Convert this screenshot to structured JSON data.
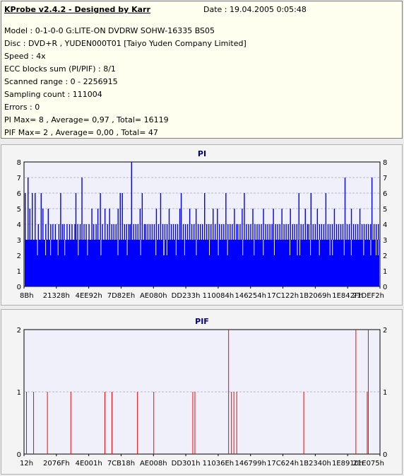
{
  "header": {
    "title": "KProbe v2.4.2 - Designed by Karr",
    "date": "Date : 19.04.2005 0:05:48"
  },
  "info_lines": [
    "Model : 0-1-0-0 G:LITE-ON DVDRW SOHW-16335 BS05",
    "Disc : DVD+R , YUDEN000T01 [Taiyo Yuden Company Limited]",
    "Speed : 4x",
    "ECC blocks sum (PI/PIF) : 8/1",
    "Scanned range : 0 - 2256915",
    "Sampling count : 111004",
    "Errors : 0",
    "PI Max= 8 , Average= 0,97 , Total= 16119",
    "PIF Max= 2 , Average= 0,00 , Total= 47"
  ],
  "colors": {
    "pi_fill": "#0000ff",
    "pif_line": "#ff0000",
    "plot_bg": "#f0f0fa",
    "title": "#000080"
  },
  "chart_data": [
    {
      "type": "bar",
      "title": "PI",
      "ylim": [
        0,
        8
      ],
      "yticks": [
        0,
        1,
        2,
        3,
        4,
        5,
        6,
        7,
        8
      ],
      "xtick_labels": [
        "8Bh",
        "21328h",
        "4EE92h",
        "7D82Eh",
        "AE080h",
        "DD233h",
        "110084h",
        "146254h",
        "17C122h",
        "1B2069h",
        "1E842Fh",
        "21DEF2h"
      ],
      "baseline": 3,
      "samples_fraction_value": [
        [
          0.0,
          6
        ],
        [
          0.008,
          7
        ],
        [
          0.013,
          5
        ],
        [
          0.02,
          6
        ],
        [
          0.028,
          6
        ],
        [
          0.037,
          4
        ],
        [
          0.045,
          6
        ],
        [
          0.05,
          5
        ],
        [
          0.058,
          4
        ],
        [
          0.065,
          5
        ],
        [
          0.072,
          4
        ],
        [
          0.078,
          4
        ],
        [
          0.085,
          4
        ],
        [
          0.095,
          4
        ],
        [
          0.1,
          6
        ],
        [
          0.105,
          4
        ],
        [
          0.11,
          4
        ],
        [
          0.118,
          4
        ],
        [
          0.125,
          4
        ],
        [
          0.132,
          4
        ],
        [
          0.14,
          4
        ],
        [
          0.143,
          6
        ],
        [
          0.148,
          4
        ],
        [
          0.155,
          4
        ],
        [
          0.16,
          7
        ],
        [
          0.166,
          4
        ],
        [
          0.172,
          4
        ],
        [
          0.18,
          4
        ],
        [
          0.188,
          5
        ],
        [
          0.193,
          4
        ],
        [
          0.2,
          4
        ],
        [
          0.205,
          5
        ],
        [
          0.212,
          6
        ],
        [
          0.218,
          4
        ],
        [
          0.225,
          5
        ],
        [
          0.232,
          4
        ],
        [
          0.238,
          5
        ],
        [
          0.244,
          4
        ],
        [
          0.25,
          4
        ],
        [
          0.256,
          4
        ],
        [
          0.262,
          5
        ],
        [
          0.268,
          6
        ],
        [
          0.274,
          6
        ],
        [
          0.28,
          4
        ],
        [
          0.286,
          4
        ],
        [
          0.292,
          4
        ],
        [
          0.296,
          4
        ],
        [
          0.3,
          8
        ],
        [
          0.306,
          4
        ],
        [
          0.312,
          4
        ],
        [
          0.318,
          4
        ],
        [
          0.324,
          5
        ],
        [
          0.33,
          6
        ],
        [
          0.336,
          4
        ],
        [
          0.34,
          4
        ],
        [
          0.346,
          4
        ],
        [
          0.352,
          4
        ],
        [
          0.358,
          4
        ],
        [
          0.364,
          4
        ],
        [
          0.37,
          5
        ],
        [
          0.376,
          4
        ],
        [
          0.382,
          6
        ],
        [
          0.388,
          4
        ],
        [
          0.394,
          4
        ],
        [
          0.4,
          4
        ],
        [
          0.406,
          5
        ],
        [
          0.412,
          4
        ],
        [
          0.418,
          4
        ],
        [
          0.424,
          4
        ],
        [
          0.43,
          4
        ],
        [
          0.436,
          5
        ],
        [
          0.44,
          6
        ],
        [
          0.446,
          4
        ],
        [
          0.452,
          4
        ],
        [
          0.458,
          4
        ],
        [
          0.464,
          5
        ],
        [
          0.47,
          4
        ],
        [
          0.476,
          4
        ],
        [
          0.482,
          5
        ],
        [
          0.488,
          4
        ],
        [
          0.494,
          4
        ],
        [
          0.5,
          4
        ],
        [
          0.506,
          6
        ],
        [
          0.512,
          4
        ],
        [
          0.518,
          4
        ],
        [
          0.524,
          4
        ],
        [
          0.53,
          5
        ],
        [
          0.536,
          4
        ],
        [
          0.542,
          5
        ],
        [
          0.548,
          4
        ],
        [
          0.554,
          4
        ],
        [
          0.56,
          4
        ],
        [
          0.566,
          6
        ],
        [
          0.572,
          4
        ],
        [
          0.578,
          4
        ],
        [
          0.584,
          4
        ],
        [
          0.59,
          5
        ],
        [
          0.596,
          4
        ],
        [
          0.6,
          4
        ],
        [
          0.606,
          4
        ],
        [
          0.612,
          5
        ],
        [
          0.618,
          6
        ],
        [
          0.624,
          4
        ],
        [
          0.63,
          4
        ],
        [
          0.636,
          4
        ],
        [
          0.642,
          5
        ],
        [
          0.648,
          4
        ],
        [
          0.654,
          4
        ],
        [
          0.66,
          4
        ],
        [
          0.666,
          4
        ],
        [
          0.672,
          5
        ],
        [
          0.678,
          4
        ],
        [
          0.684,
          4
        ],
        [
          0.69,
          4
        ],
        [
          0.696,
          4
        ],
        [
          0.7,
          5
        ],
        [
          0.706,
          4
        ],
        [
          0.712,
          4
        ],
        [
          0.718,
          4
        ],
        [
          0.724,
          5
        ],
        [
          0.73,
          4
        ],
        [
          0.736,
          4
        ],
        [
          0.742,
          4
        ],
        [
          0.748,
          5
        ],
        [
          0.754,
          4
        ],
        [
          0.76,
          4
        ],
        [
          0.766,
          4
        ],
        [
          0.772,
          6
        ],
        [
          0.778,
          4
        ],
        [
          0.784,
          4
        ],
        [
          0.79,
          5
        ],
        [
          0.796,
          4
        ],
        [
          0.8,
          4
        ],
        [
          0.806,
          6
        ],
        [
          0.812,
          4
        ],
        [
          0.818,
          4
        ],
        [
          0.824,
          5
        ],
        [
          0.83,
          4
        ],
        [
          0.836,
          4
        ],
        [
          0.842,
          4
        ],
        [
          0.848,
          6
        ],
        [
          0.854,
          4
        ],
        [
          0.86,
          4
        ],
        [
          0.866,
          4
        ],
        [
          0.872,
          5
        ],
        [
          0.878,
          4
        ],
        [
          0.884,
          4
        ],
        [
          0.89,
          4
        ],
        [
          0.896,
          4
        ],
        [
          0.902,
          7
        ],
        [
          0.908,
          4
        ],
        [
          0.914,
          4
        ],
        [
          0.92,
          5
        ],
        [
          0.926,
          4
        ],
        [
          0.932,
          4
        ],
        [
          0.938,
          4
        ],
        [
          0.944,
          5
        ],
        [
          0.95,
          4
        ],
        [
          0.956,
          4
        ],
        [
          0.962,
          4
        ],
        [
          0.968,
          4
        ],
        [
          0.974,
          4
        ],
        [
          0.978,
          7
        ],
        [
          0.984,
          4
        ],
        [
          0.99,
          4
        ],
        [
          0.996,
          4
        ]
      ],
      "dips_fraction": [
        0.035,
        0.058,
        0.072,
        0.093,
        0.112,
        0.15,
        0.176,
        0.214,
        0.262,
        0.288,
        0.326,
        0.369,
        0.391,
        0.392,
        0.4,
        0.426,
        0.45,
        0.483,
        0.52,
        0.545,
        0.571,
        0.614,
        0.646,
        0.672,
        0.703,
        0.747,
        0.768,
        0.775,
        0.805,
        0.83,
        0.86,
        0.867,
        0.9,
        0.92,
        0.955,
        0.975,
        0.99,
        0.996
      ]
    },
    {
      "type": "bar",
      "title": "PIF",
      "ylim": [
        0,
        2
      ],
      "yticks": [
        0,
        1,
        2
      ],
      "xtick_labels": [
        "12h",
        "2076Fh",
        "4E001h",
        "7CB18h",
        "AE008h",
        "DD301h",
        "11036Eh",
        "146799h",
        "17C624h",
        "1B2340h",
        "1E8910h",
        "21E075h"
      ],
      "spikes_fraction_value": [
        [
          0.005,
          1
        ],
        [
          0.025,
          1
        ],
        [
          0.064,
          1
        ],
        [
          0.13,
          1
        ],
        [
          0.226,
          1
        ],
        [
          0.246,
          1
        ],
        [
          0.318,
          1
        ],
        [
          0.364,
          1
        ],
        [
          0.474,
          1
        ],
        [
          0.48,
          1
        ],
        [
          0.575,
          2
        ],
        [
          0.583,
          1
        ],
        [
          0.59,
          1
        ],
        [
          0.598,
          1
        ],
        [
          0.787,
          1
        ],
        [
          0.934,
          2
        ],
        [
          0.966,
          1
        ],
        [
          0.969,
          2
        ]
      ]
    }
  ]
}
